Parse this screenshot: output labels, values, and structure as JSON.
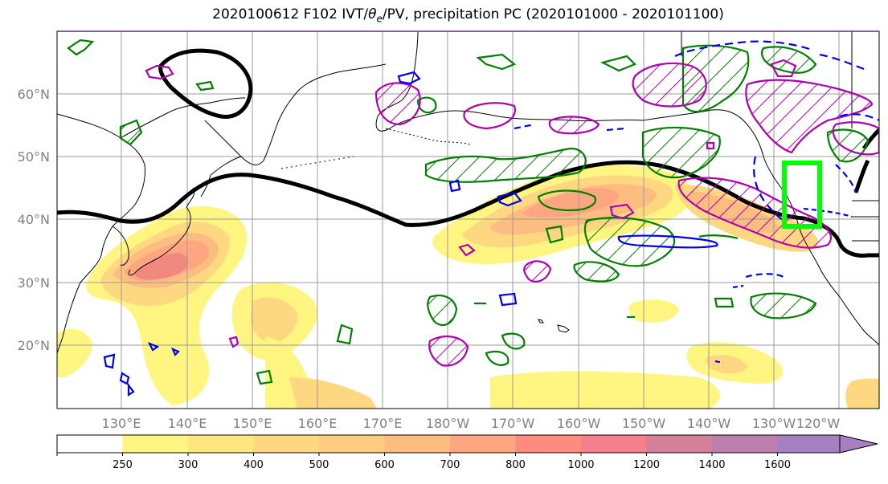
{
  "title": {
    "prefix": "2020100612 F102 IVT/",
    "theta": "θ",
    "theta_sub": "e",
    "suffix": "/PV, precipitation PC (2020101000 - 2020101100)"
  },
  "lat_labels": [
    "60°N",
    "50°N",
    "40°N",
    "30°N",
    "20°N"
  ],
  "lon_labels": [
    "130°E",
    "140°E",
    "150°E",
    "160°E",
    "170°E",
    "180°W",
    "170°W",
    "160°W",
    "150°W",
    "140°W",
    "130°W",
    "120°W"
  ],
  "colorbar": {
    "levels": [
      "250",
      "300",
      "400",
      "500",
      "600",
      "700",
      "800",
      "1000",
      "1200",
      "1400",
      "1600"
    ],
    "colors": [
      "#ffffff",
      "#fff580",
      "#ffe780",
      "#fed880",
      "#fecb80",
      "#febd80",
      "#fea680",
      "#fe8b80",
      "#f3808a",
      "#d48099",
      "#bd80ad",
      "#a780c2"
    ]
  },
  "contour_colors": {
    "pv": "#000000",
    "theta_e": "#008000",
    "precip_pos": "#b000b0",
    "precip_neg": "#0000ee",
    "target_box": "#00ff00"
  }
}
